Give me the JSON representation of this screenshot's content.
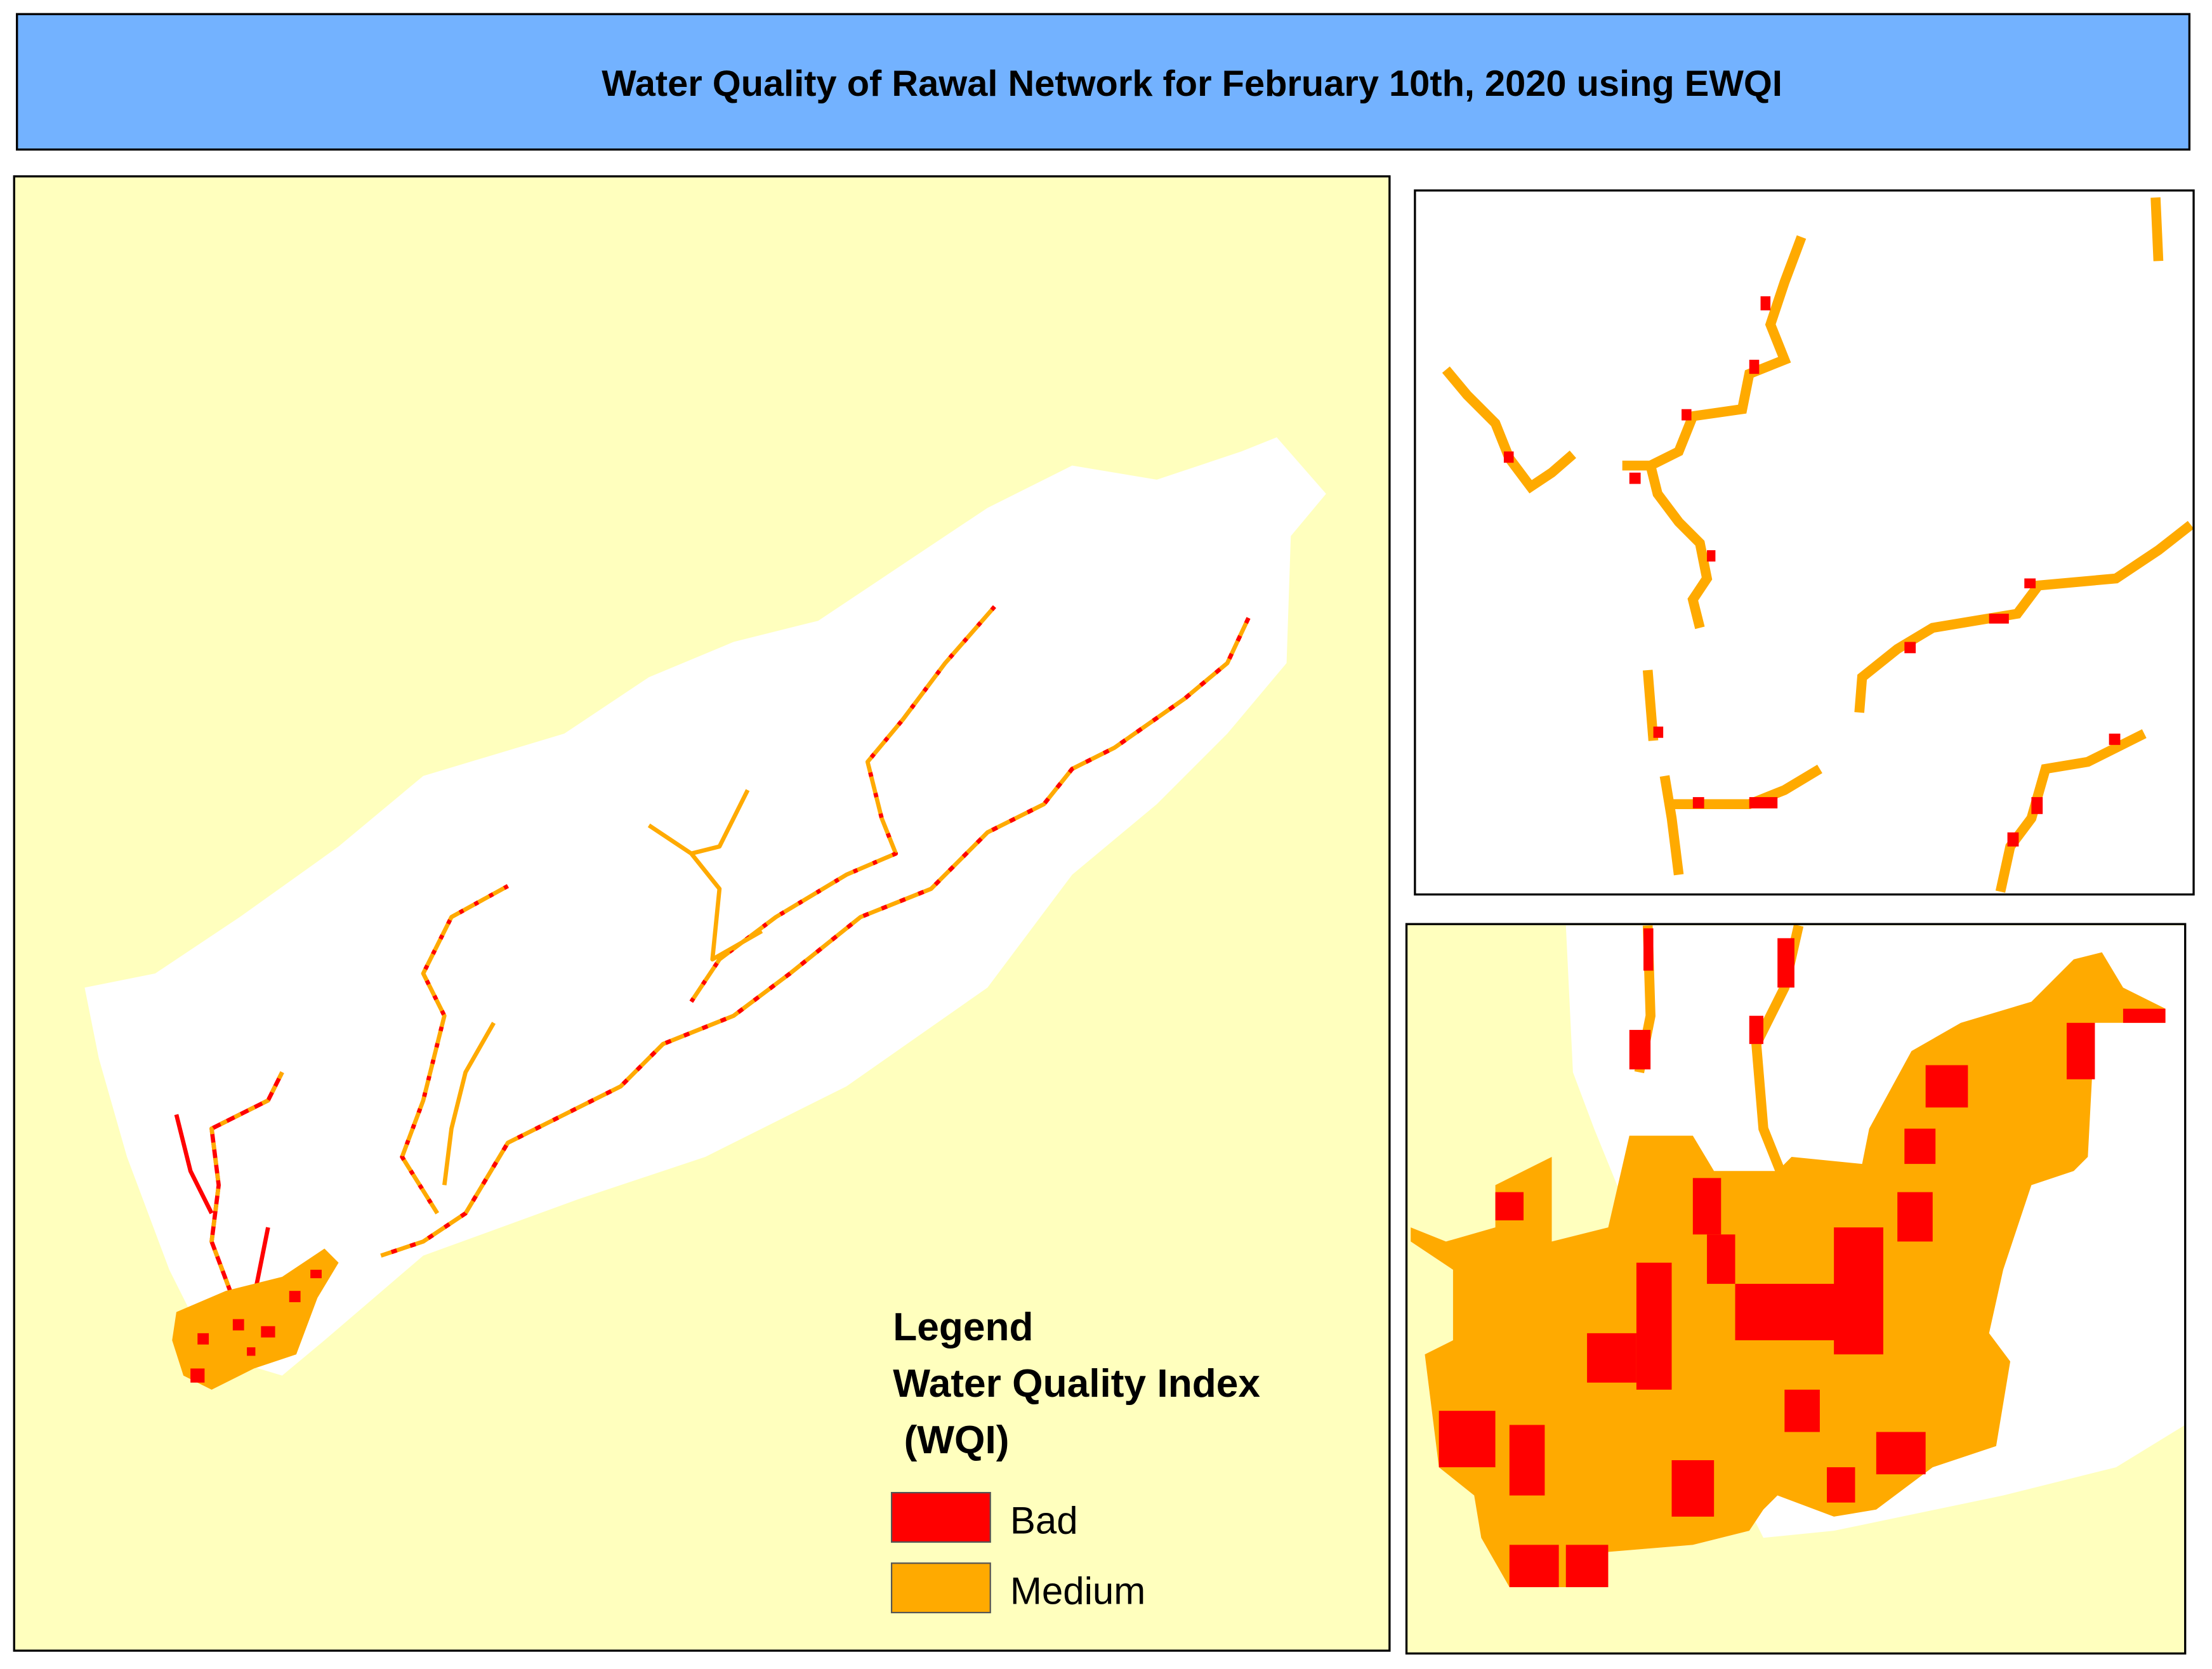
{
  "title": "Water Quality of Rawal Network for February 10th, 2020 using  EWQI",
  "legend": {
    "title": "Legend",
    "subtitle_lines": [
      "Water Quality Index",
      " (WQI)"
    ],
    "items": [
      {
        "label": "Bad",
        "color": "#ff0000"
      },
      {
        "label": "Medium",
        "color": "#ffaa00"
      }
    ]
  }
}
